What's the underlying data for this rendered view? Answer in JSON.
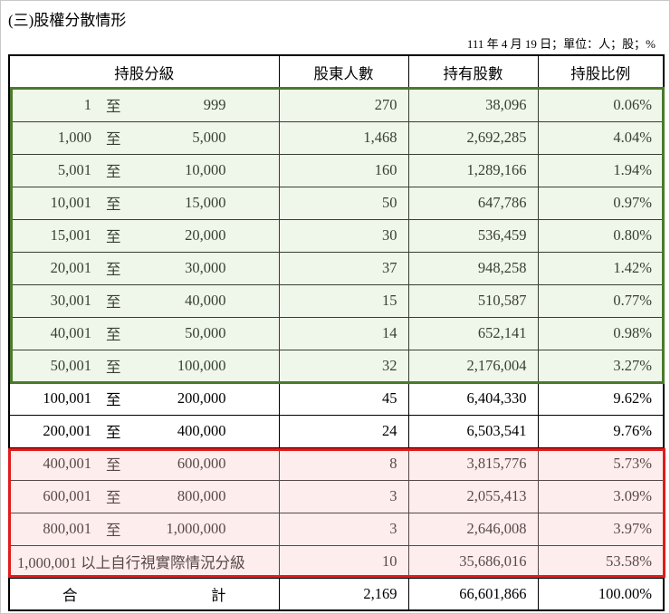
{
  "title": "(三)股權分散情形",
  "unit_note": "111 年 4 月 19 日；單位：人；股；%",
  "headers": [
    "持股分級",
    "股東人數",
    "持有股數",
    "持股比例"
  ],
  "rows": [
    {
      "lo": "1",
      "sep": "至",
      "hi": "999",
      "holders": "270",
      "shares": "38,096",
      "pct": "0.06%"
    },
    {
      "lo": "1,000",
      "sep": "至",
      "hi": "5,000",
      "holders": "1,468",
      "shares": "2,692,285",
      "pct": "4.04%"
    },
    {
      "lo": "5,001",
      "sep": "至",
      "hi": "10,000",
      "holders": "160",
      "shares": "1,289,166",
      "pct": "1.94%"
    },
    {
      "lo": "10,001",
      "sep": "至",
      "hi": "15,000",
      "holders": "50",
      "shares": "647,786",
      "pct": "0.97%"
    },
    {
      "lo": "15,001",
      "sep": "至",
      "hi": "20,000",
      "holders": "30",
      "shares": "536,459",
      "pct": "0.80%"
    },
    {
      "lo": "20,001",
      "sep": "至",
      "hi": "30,000",
      "holders": "37",
      "shares": "948,258",
      "pct": "1.42%"
    },
    {
      "lo": "30,001",
      "sep": "至",
      "hi": "40,000",
      "holders": "15",
      "shares": "510,587",
      "pct": "0.77%"
    },
    {
      "lo": "40,001",
      "sep": "至",
      "hi": "50,000",
      "holders": "14",
      "shares": "652,141",
      "pct": "0.98%"
    },
    {
      "lo": "50,001",
      "sep": "至",
      "hi": "100,000",
      "holders": "32",
      "shares": "2,176,004",
      "pct": "3.27%"
    },
    {
      "lo": "100,001",
      "sep": "至",
      "hi": "200,000",
      "holders": "45",
      "shares": "6,404,330",
      "pct": "9.62%"
    },
    {
      "lo": "200,001",
      "sep": "至",
      "hi": "400,000",
      "holders": "24",
      "shares": "6,503,541",
      "pct": "9.76%"
    },
    {
      "lo": "400,001",
      "sep": "至",
      "hi": "600,000",
      "holders": "8",
      "shares": "3,815,776",
      "pct": "5.73%"
    },
    {
      "lo": "600,001",
      "sep": "至",
      "hi": "800,000",
      "holders": "3",
      "shares": "2,055,413",
      "pct": "3.09%"
    },
    {
      "lo": "800,001",
      "sep": "至",
      "hi": "1,000,000",
      "holders": "3",
      "shares": "2,646,008",
      "pct": "3.97%"
    },
    {
      "full": "1,000,001 以上自行視實際情況分級",
      "holders": "10",
      "shares": "35,686,016",
      "pct": "53.58%"
    }
  ],
  "total": {
    "label_a": "合",
    "label_b": "計",
    "holders": "2,169",
    "shares": "66,601,866",
    "pct": "100.00%"
  },
  "colors": {
    "green_highlight": "#4a7a2c",
    "red_highlight": "#e21b1b"
  }
}
